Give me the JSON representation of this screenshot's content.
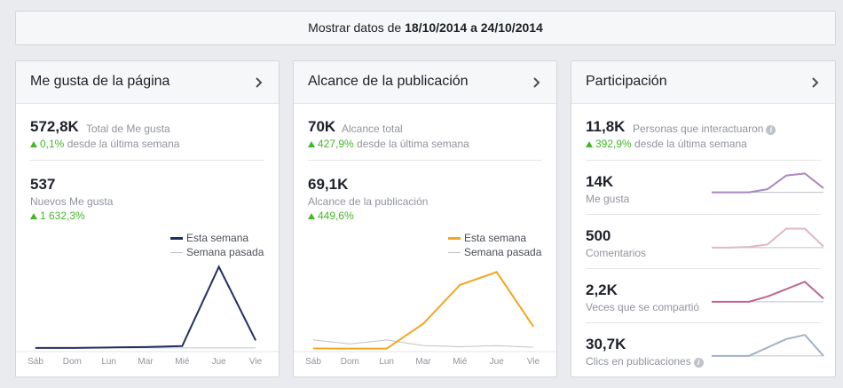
{
  "topbar": {
    "prefix": "Mostrar datos de",
    "date_from": "18/10/2014",
    "connector": "a",
    "date_to": "24/10/2014"
  },
  "cards": [
    {
      "title": "Me gusta de la página",
      "metric1": {
        "value": "572,8K",
        "label": "Total de Me gusta",
        "change": "0,1%",
        "change_text": "desde la última semana"
      },
      "metric2": {
        "value": "537",
        "label": "Nuevos Me gusta",
        "change": "1 632,3%"
      },
      "legend": {
        "current": "Esta semana",
        "previous": "Semana pasada"
      },
      "color": "#23305e"
    },
    {
      "title": "Alcance de la publicación",
      "metric1": {
        "value": "70K",
        "label": "Alcance total",
        "change": "427,9%",
        "change_text": "desde la última semana"
      },
      "metric2": {
        "value": "69,1K",
        "label": "Alcance de la publicación",
        "change": "449,6%"
      },
      "legend": {
        "current": "Esta semana",
        "previous": "Semana pasada"
      },
      "color": "#f5a623"
    },
    {
      "title": "Participación",
      "metric1": {
        "value": "11,8K",
        "label": "Personas que interactuaron",
        "change": "392,9%",
        "change_text": "desde la última semana",
        "info_icon": "info-icon"
      },
      "rows": [
        {
          "value": "14K",
          "label": "Me gusta",
          "color": "#a886c4"
        },
        {
          "value": "500",
          "label": "Comentarios",
          "color": "#e2b6c8"
        },
        {
          "value": "2,2K",
          "label": "Veces que se compartió",
          "color": "#c0648f"
        },
        {
          "value": "30,7K",
          "label": "Clics en publicaciones",
          "color": "#a3b0c6",
          "info_icon": "info-icon"
        }
      ]
    }
  ],
  "chart_data": [
    {
      "type": "line",
      "title": "Me gusta de la página",
      "categories": [
        "Sáb",
        "Dom",
        "Lun",
        "Mar",
        "Mié",
        "Jue",
        "Vie"
      ],
      "series": [
        {
          "name": "Esta semana",
          "values": [
            2,
            2,
            3,
            4,
            6,
            170,
            18
          ]
        },
        {
          "name": "Semana pasada",
          "values": [
            2,
            2,
            2,
            2,
            2,
            2,
            2
          ]
        }
      ],
      "ylim": [
        0,
        180
      ],
      "grid": false,
      "legend": "top-right"
    },
    {
      "type": "line",
      "title": "Alcance de la publicación",
      "categories": [
        "Sáb",
        "Dom",
        "Lun",
        "Mar",
        "Mié",
        "Jue",
        "Vie"
      ],
      "series": [
        {
          "name": "Esta semana",
          "values": [
            100,
            50,
            50,
            4500,
            11400,
            13700,
            4000
          ]
        },
        {
          "name": "Semana pasada",
          "values": [
            1600,
            900,
            1600,
            600,
            400,
            600,
            300
          ]
        }
      ],
      "ylim": [
        0,
        15500
      ],
      "grid": false,
      "legend": "top-right"
    },
    {
      "type": "line",
      "title": "Me gusta",
      "categories": [
        "Sáb",
        "Dom",
        "Lun",
        "Mar",
        "Mié",
        "Jue",
        "Vie"
      ],
      "series": [
        {
          "name": "Esta semana",
          "values": [
            10,
            10,
            10,
            25,
            90,
            100,
            30
          ]
        },
        {
          "name": "Semana pasada",
          "values": [
            10,
            10,
            10,
            10,
            10,
            10,
            10
          ]
        }
      ],
      "ylim": [
        0,
        110
      ]
    },
    {
      "type": "line",
      "title": "Comentarios",
      "categories": [
        "Sáb",
        "Dom",
        "Lun",
        "Mar",
        "Mié",
        "Jue",
        "Vie"
      ],
      "series": [
        {
          "name": "Esta semana",
          "values": [
            5,
            5,
            8,
            20,
            95,
            95,
            10
          ]
        },
        {
          "name": "Semana pasada",
          "values": [
            5,
            5,
            5,
            5,
            5,
            5,
            5
          ]
        }
      ],
      "ylim": [
        0,
        110
      ]
    },
    {
      "type": "line",
      "title": "Veces que se compartió",
      "categories": [
        "Sáb",
        "Dom",
        "Lun",
        "Mar",
        "Mié",
        "Jue",
        "Vie"
      ],
      "series": [
        {
          "name": "Esta semana",
          "values": [
            5,
            5,
            5,
            30,
            65,
            100,
            20
          ]
        },
        {
          "name": "Semana pasada",
          "values": [
            5,
            5,
            5,
            5,
            5,
            5,
            5
          ]
        }
      ],
      "ylim": [
        0,
        110
      ]
    },
    {
      "type": "line",
      "title": "Clics en publicaciones",
      "categories": [
        "Sáb",
        "Dom",
        "Lun",
        "Mar",
        "Mié",
        "Jue",
        "Vie"
      ],
      "series": [
        {
          "name": "Esta semana",
          "values": [
            5,
            5,
            5,
            45,
            85,
            105,
            5
          ]
        },
        {
          "name": "Semana pasada",
          "values": [
            5,
            5,
            5,
            5,
            5,
            5,
            5
          ]
        }
      ],
      "ylim": [
        0,
        110
      ]
    }
  ]
}
